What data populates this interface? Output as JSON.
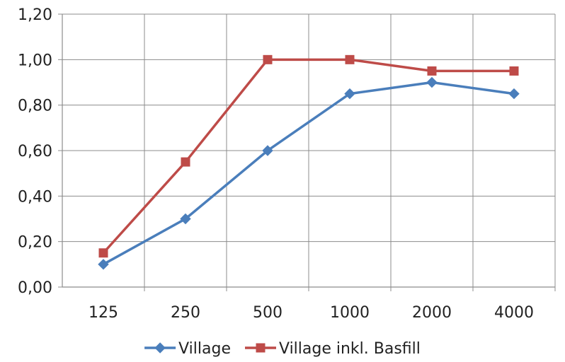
{
  "chart_data": {
    "type": "line",
    "title": "",
    "xlabel": "",
    "ylabel": "",
    "categories": [
      "125",
      "250",
      "500",
      "1000",
      "2000",
      "4000"
    ],
    "ylim": [
      0,
      1.2
    ],
    "yticks": [
      "0,00",
      "0,20",
      "0,40",
      "0,60",
      "0,80",
      "1,00",
      "1,20"
    ],
    "grid": true,
    "legend_position": "bottom",
    "series": [
      {
        "name": "Village",
        "values": [
          0.1,
          0.3,
          0.6,
          0.85,
          0.9,
          0.85
        ],
        "color": "#4A7EBB",
        "marker": "diamond"
      },
      {
        "name": "Village inkl. Basfill",
        "values": [
          0.15,
          0.55,
          1.0,
          1.0,
          0.95,
          0.95
        ],
        "color": "#BE4B48",
        "marker": "square"
      }
    ]
  }
}
